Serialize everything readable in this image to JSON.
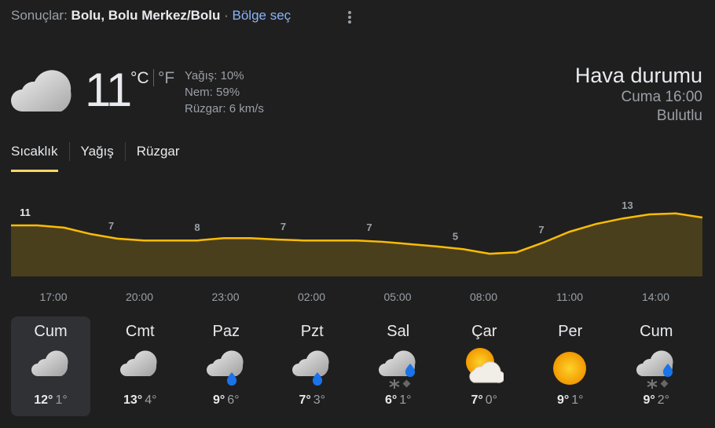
{
  "header": {
    "prefix": "Sonuçlar: ",
    "location": "Bolu, Bolu Merkez/Bolu",
    "sep": " · ",
    "region_link": "Bölge seç",
    "more_icon": "more-vert-icon"
  },
  "current": {
    "icon": "cloudy",
    "temp": "11",
    "unit_c": "°C",
    "unit_f": "°F",
    "precip": "Yağış: 10%",
    "humidity": "Nem: 59%",
    "wind": "Rüzgar: 6 km/s"
  },
  "right": {
    "title": "Hava durumu",
    "time": "Cuma 16:00",
    "condition": "Bulutlu"
  },
  "tabs": [
    {
      "label": "Sıcaklık",
      "active": true
    },
    {
      "label": "Yağış"
    },
    {
      "label": "Rüzgar"
    }
  ],
  "chart_data": {
    "type": "area",
    "color": "#fbbc04",
    "fill": "#4a3f1c",
    "hourly_values": [
      10.3,
      10.3,
      9.8,
      8.4,
      7.4,
      7,
      7,
      7,
      7.5,
      7.5,
      7.2,
      7,
      7,
      7,
      6.7,
      6.2,
      5.7,
      5.1,
      4.1,
      4.4,
      6.5,
      8.9,
      10.6,
      11.8,
      12.7,
      12.9,
      12
    ],
    "labels": [
      "11",
      "7",
      "8",
      "7",
      "7",
      "5",
      "7",
      "13"
    ],
    "times": [
      "17:00",
      "20:00",
      "23:00",
      "02:00",
      "05:00",
      "08:00",
      "11:00",
      "14:00"
    ]
  },
  "days": [
    {
      "name": "Cum",
      "icon": "cloudy",
      "hi": "12°",
      "lo": "1°",
      "selected": true
    },
    {
      "name": "Cmt",
      "icon": "cloudy",
      "hi": "13°",
      "lo": "4°"
    },
    {
      "name": "Paz",
      "icon": "rain",
      "hi": "9°",
      "lo": "6°"
    },
    {
      "name": "Pzt",
      "icon": "rain",
      "hi": "7°",
      "lo": "3°"
    },
    {
      "name": "Sal",
      "icon": "sleet",
      "hi": "6°",
      "lo": "1°"
    },
    {
      "name": "Çar",
      "icon": "partly-cloudy",
      "hi": "7°",
      "lo": "0°"
    },
    {
      "name": "Per",
      "icon": "sunny",
      "hi": "9°",
      "lo": "1°"
    },
    {
      "name": "Cum",
      "icon": "sleet",
      "hi": "9°",
      "lo": "2°"
    }
  ]
}
